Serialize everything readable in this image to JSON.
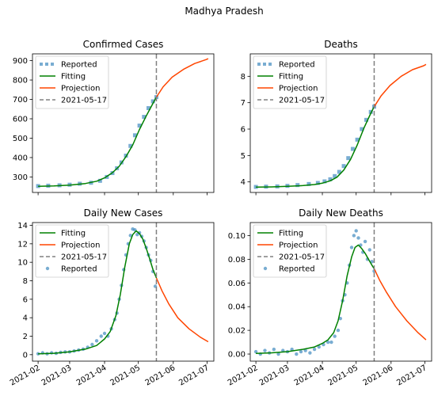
{
  "figure": {
    "suptitle": "Madhya Pradesh"
  },
  "colors": {
    "reported": "#1f77b4",
    "fitting": "#008000",
    "projection": "#ff4500",
    "vline": "#808080"
  },
  "chart_data": [
    {
      "type": "line",
      "title": "Confirmed Cases",
      "x_ticks": [
        "2021-02",
        "2021-03",
        "2021-04",
        "2021-05",
        "2021-06",
        "2021-07"
      ],
      "y_ticks": [
        300,
        400,
        500,
        600,
        700,
        800,
        900
      ],
      "xlim": [
        "2021-01-27",
        "2021-07-07"
      ],
      "ylim": [
        220,
        935
      ],
      "vline": "2021-05-17",
      "legend": [
        "Reported",
        "Fitting",
        "Projection",
        "2021-05-17"
      ],
      "legend_position": "upper left",
      "series": {
        "reported": {
          "x": [
            "2021-02-01",
            "2021-02-10",
            "2021-02-20",
            "2021-03-01",
            "2021-03-10",
            "2021-03-20",
            "2021-03-28",
            "2021-04-03",
            "2021-04-08",
            "2021-04-12",
            "2021-04-16",
            "2021-04-20",
            "2021-04-24",
            "2021-04-28",
            "2021-05-02",
            "2021-05-06",
            "2021-05-10",
            "2021-05-14",
            "2021-05-17"
          ],
          "y": [
            253,
            255,
            257,
            260,
            265,
            270,
            280,
            300,
            320,
            345,
            375,
            410,
            460,
            515,
            565,
            610,
            655,
            690,
            712
          ]
        },
        "fitting": {
          "x": [
            "2021-02-01",
            "2021-02-15",
            "2021-03-01",
            "2021-03-15",
            "2021-03-25",
            "2021-04-01",
            "2021-04-08",
            "2021-04-14",
            "2021-04-20",
            "2021-04-26",
            "2021-05-02",
            "2021-05-08",
            "2021-05-14",
            "2021-05-17"
          ],
          "y": [
            252,
            254,
            258,
            266,
            278,
            295,
            322,
            355,
            405,
            465,
            545,
            615,
            680,
            712
          ]
        },
        "projection": {
          "x": [
            "2021-05-17",
            "2021-05-23",
            "2021-05-31",
            "2021-06-10",
            "2021-06-20",
            "2021-06-30",
            "2021-07-02"
          ],
          "y": [
            712,
            765,
            815,
            855,
            885,
            905,
            910
          ]
        }
      }
    },
    {
      "type": "line",
      "title": "Deaths",
      "x_ticks": [
        "2021-02",
        "2021-03",
        "2021-04",
        "2021-05",
        "2021-06",
        "2021-07"
      ],
      "y_ticks": [
        4,
        5,
        6,
        7,
        8
      ],
      "xlim": [
        "2021-01-27",
        "2021-07-07"
      ],
      "ylim": [
        3.6,
        8.85
      ],
      "vline": "2021-05-17",
      "legend": [
        "Reported",
        "Fitting",
        "Projection",
        "2021-05-17"
      ],
      "legend_position": "upper left",
      "series": {
        "reported": {
          "x": [
            "2021-02-01",
            "2021-02-10",
            "2021-02-20",
            "2021-03-01",
            "2021-03-10",
            "2021-03-20",
            "2021-03-28",
            "2021-04-03",
            "2021-04-08",
            "2021-04-12",
            "2021-04-16",
            "2021-04-20",
            "2021-04-24",
            "2021-04-28",
            "2021-05-02",
            "2021-05-06",
            "2021-05-10",
            "2021-05-14",
            "2021-05-17"
          ],
          "y": [
            3.81,
            3.82,
            3.83,
            3.85,
            3.88,
            3.92,
            3.96,
            4.02,
            4.1,
            4.22,
            4.38,
            4.6,
            4.9,
            5.25,
            5.6,
            6.0,
            6.35,
            6.65,
            6.85
          ]
        },
        "fitting": {
          "x": [
            "2021-02-01",
            "2021-02-15",
            "2021-03-01",
            "2021-03-15",
            "2021-03-25",
            "2021-04-01",
            "2021-04-08",
            "2021-04-14",
            "2021-04-20",
            "2021-04-26",
            "2021-05-02",
            "2021-05-08",
            "2021-05-14",
            "2021-05-17"
          ],
          "y": [
            3.8,
            3.81,
            3.83,
            3.86,
            3.9,
            3.95,
            4.04,
            4.18,
            4.45,
            4.85,
            5.4,
            6.05,
            6.6,
            6.85
          ]
        },
        "projection": {
          "x": [
            "2021-05-17",
            "2021-05-23",
            "2021-05-31",
            "2021-06-10",
            "2021-06-20",
            "2021-06-30",
            "2021-07-02"
          ],
          "y": [
            6.85,
            7.25,
            7.65,
            8.0,
            8.25,
            8.4,
            8.45
          ]
        }
      }
    },
    {
      "type": "line",
      "title": "Daily New Cases",
      "x_ticks": [
        "2021-02",
        "2021-03",
        "2021-04",
        "2021-05",
        "2021-06",
        "2021-07"
      ],
      "y_ticks": [
        0,
        2,
        4,
        6,
        8,
        10,
        12,
        14
      ],
      "xlim": [
        "2021-01-27",
        "2021-07-07"
      ],
      "ylim": [
        -0.7,
        14.3
      ],
      "vline": "2021-05-17",
      "legend": [
        "Fitting",
        "Projection",
        "2021-05-17",
        "Reported"
      ],
      "legend_position": "upper left",
      "series": {
        "fitting": {
          "x": [
            "2021-02-01",
            "2021-02-15",
            "2021-03-01",
            "2021-03-15",
            "2021-03-25",
            "2021-04-01",
            "2021-04-06",
            "2021-04-11",
            "2021-04-15",
            "2021-04-19",
            "2021-04-23",
            "2021-04-26",
            "2021-04-29",
            "2021-05-02",
            "2021-05-05",
            "2021-05-08",
            "2021-05-11",
            "2021-05-14",
            "2021-05-17"
          ],
          "y": [
            0.1,
            0.15,
            0.3,
            0.6,
            1.0,
            1.7,
            2.5,
            4.2,
            6.5,
            9.5,
            12.0,
            13.0,
            13.4,
            13.1,
            12.5,
            11.5,
            10.4,
            9.2,
            8.3
          ]
        },
        "projection": {
          "x": [
            "2021-05-17",
            "2021-05-22",
            "2021-05-28",
            "2021-06-05",
            "2021-06-15",
            "2021-06-25",
            "2021-07-02"
          ],
          "y": [
            8.3,
            6.9,
            5.5,
            4.0,
            2.8,
            1.9,
            1.4
          ]
        },
        "reported": {
          "x": [
            "2021-02-01",
            "2021-02-05",
            "2021-02-09",
            "2021-02-13",
            "2021-02-17",
            "2021-02-21",
            "2021-02-25",
            "2021-03-01",
            "2021-03-05",
            "2021-03-09",
            "2021-03-13",
            "2021-03-17",
            "2021-03-21",
            "2021-03-25",
            "2021-03-29",
            "2021-04-01",
            "2021-04-04",
            "2021-04-07",
            "2021-04-10",
            "2021-04-12",
            "2021-04-14",
            "2021-04-16",
            "2021-04-18",
            "2021-04-20",
            "2021-04-22",
            "2021-04-24",
            "2021-04-26",
            "2021-04-28",
            "2021-04-30",
            "2021-05-02",
            "2021-05-04",
            "2021-05-06",
            "2021-05-08",
            "2021-05-10",
            "2021-05-12",
            "2021-05-14",
            "2021-05-16"
          ],
          "y": [
            0.1,
            0.2,
            0.1,
            0.2,
            0.15,
            0.25,
            0.3,
            0.3,
            0.4,
            0.5,
            0.6,
            0.8,
            1.1,
            1.5,
            2.0,
            2.3,
            2.0,
            2.8,
            3.8,
            4.5,
            6.0,
            7.5,
            9.2,
            10.8,
            12.0,
            12.9,
            13.6,
            13.5,
            13.0,
            13.2,
            12.8,
            12.3,
            11.6,
            10.8,
            10.2,
            9.0,
            7.4
          ]
        }
      }
    },
    {
      "type": "line",
      "title": "Daily New Deaths",
      "x_ticks": [
        "2021-02",
        "2021-03",
        "2021-04",
        "2021-05",
        "2021-06",
        "2021-07"
      ],
      "y_ticks": [
        "0.00",
        "0.02",
        "0.04",
        "0.06",
        "0.08",
        "0.10"
      ],
      "xlim": [
        "2021-01-27",
        "2021-07-07"
      ],
      "ylim": [
        -0.006,
        0.111
      ],
      "vline": "2021-05-17",
      "legend": [
        "Fitting",
        "Projection",
        "2021-05-17",
        "Reported"
      ],
      "legend_position": "upper left",
      "series": {
        "fitting": {
          "x": [
            "2021-02-01",
            "2021-02-15",
            "2021-03-01",
            "2021-03-15",
            "2021-03-25",
            "2021-04-01",
            "2021-04-06",
            "2021-04-11",
            "2021-04-15",
            "2021-04-19",
            "2021-04-23",
            "2021-04-27",
            "2021-04-30",
            "2021-05-03",
            "2021-05-06",
            "2021-05-09",
            "2021-05-12",
            "2021-05-15",
            "2021-05-17"
          ],
          "y": [
            0.0005,
            0.001,
            0.002,
            0.004,
            0.006,
            0.009,
            0.012,
            0.018,
            0.028,
            0.045,
            0.066,
            0.082,
            0.09,
            0.092,
            0.089,
            0.085,
            0.08,
            0.075,
            0.072
          ]
        },
        "projection": {
          "x": [
            "2021-05-17",
            "2021-05-22",
            "2021-05-28",
            "2021-06-05",
            "2021-06-15",
            "2021-06-25",
            "2021-07-02"
          ],
          "y": [
            0.072,
            0.062,
            0.052,
            0.04,
            0.028,
            0.018,
            0.012
          ]
        },
        "reported": {
          "x": [
            "2021-02-01",
            "2021-02-05",
            "2021-02-09",
            "2021-02-13",
            "2021-02-17",
            "2021-02-21",
            "2021-02-25",
            "2021-03-01",
            "2021-03-05",
            "2021-03-09",
            "2021-03-13",
            "2021-03-17",
            "2021-03-21",
            "2021-03-25",
            "2021-03-29",
            "2021-04-02",
            "2021-04-06",
            "2021-04-09",
            "2021-04-12",
            "2021-04-15",
            "2021-04-17",
            "2021-04-19",
            "2021-04-21",
            "2021-04-23",
            "2021-04-25",
            "2021-04-27",
            "2021-04-29",
            "2021-05-01",
            "2021-05-03",
            "2021-05-05",
            "2021-05-07",
            "2021-05-09",
            "2021-05-11",
            "2021-05-13",
            "2021-05-15",
            "2021-05-17"
          ],
          "y": [
            0.002,
            0.0,
            0.003,
            0.001,
            0.004,
            0.0,
            0.003,
            0.002,
            0.004,
            0.0,
            0.002,
            0.003,
            0.001,
            0.004,
            0.006,
            0.008,
            0.01,
            0.01,
            0.015,
            0.02,
            0.03,
            0.045,
            0.05,
            0.06,
            0.075,
            0.09,
            0.1,
            0.104,
            0.098,
            0.092,
            0.086,
            0.095,
            0.08,
            0.088,
            0.078,
            0.07
          ]
        }
      }
    }
  ]
}
